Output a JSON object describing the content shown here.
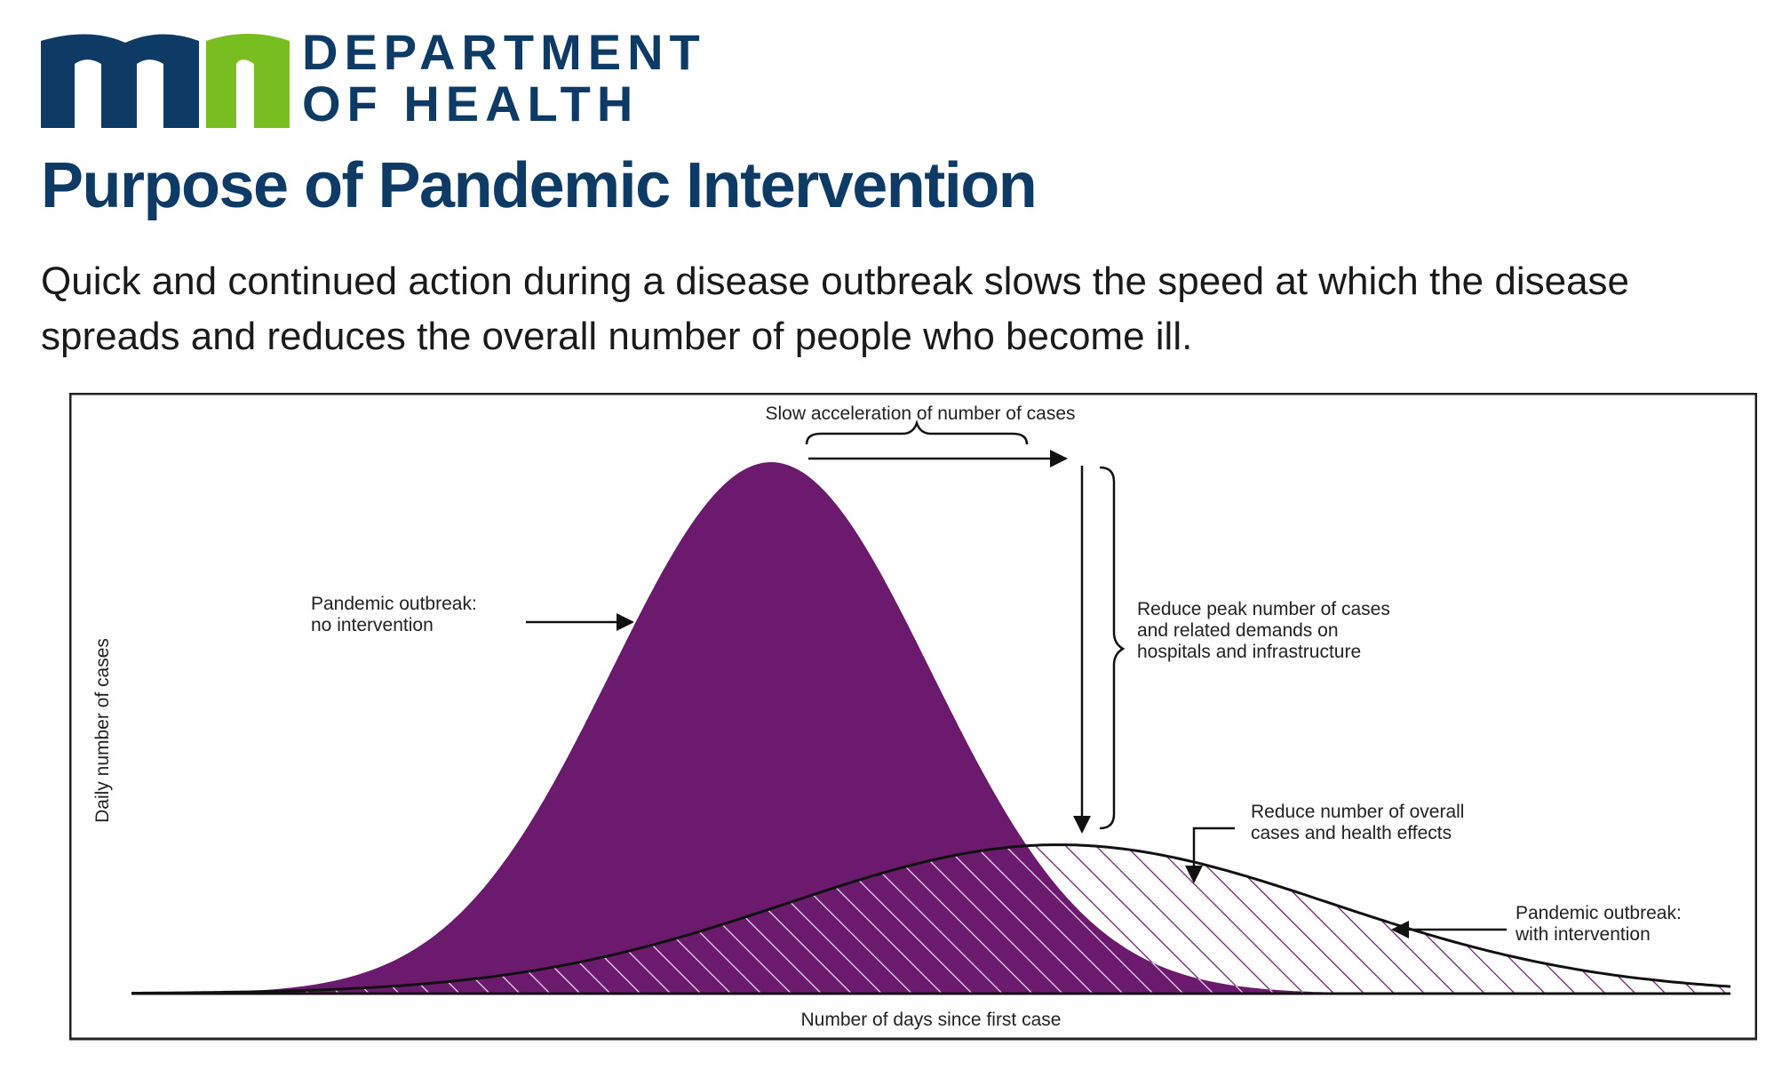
{
  "header": {
    "logo_colors": {
      "m_blue": "#0d3b66",
      "n_green": "#78be20"
    },
    "department_line1": "DEPARTMENT",
    "department_line2": "OF HEALTH"
  },
  "slide": {
    "title": "Purpose of Pandemic Intervention",
    "subtitle": "Quick and continued action during a disease outbreak slows the speed at which the disease spreads and reduces the overall number of people who become ill."
  },
  "chart_data": {
    "type": "area",
    "xlabel": "Number of days since first case",
    "ylabel": "Daily number of cases",
    "grid": false,
    "xlim": [
      0,
      100
    ],
    "ylim": [
      0,
      100
    ],
    "series": [
      {
        "name": "Pandemic outbreak: no intervention",
        "peak_x": 40,
        "peak_y": 100,
        "spread": 10,
        "fill": "#6b1a6e"
      },
      {
        "name": "Pandemic outbreak: with intervention",
        "peak_x": 58,
        "peak_y": 28,
        "spread": 17,
        "fill": "hatched"
      }
    ],
    "annotations": {
      "slow_acceleration": "Slow acceleration of number of cases",
      "no_intervention_line1": "Pandemic outbreak:",
      "no_intervention_line2": "no intervention",
      "reduce_peak_line1": "Reduce peak number of cases",
      "reduce_peak_line2": "and related demands on",
      "reduce_peak_line3": "hospitals and infrastructure",
      "reduce_overall_line1": "Reduce number of overall",
      "reduce_overall_line2": "cases and health effects",
      "with_intervention_line1": "Pandemic outbreak:",
      "with_intervention_line2": "with intervention"
    }
  }
}
